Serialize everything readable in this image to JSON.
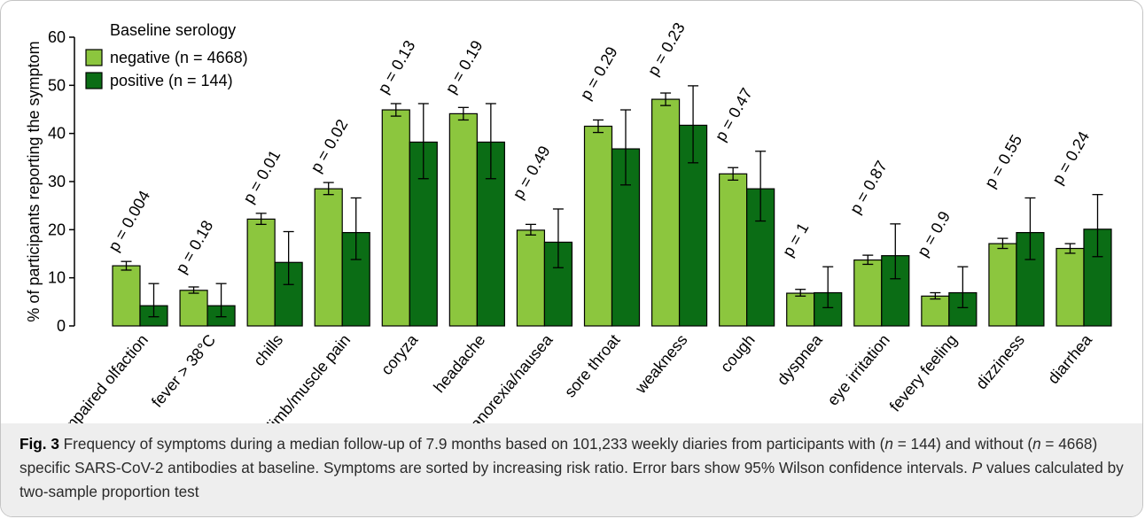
{
  "chart_data": {
    "type": "bar",
    "ylabel": "% of participants reporting the symptom",
    "ylim": [
      0,
      60
    ],
    "yticks": [
      0,
      10,
      20,
      30,
      40,
      50,
      60
    ],
    "legend": {
      "title": "Baseline serology",
      "placement": "top-left"
    },
    "categories": [
      "impaired olfaction",
      "fever > 38°C",
      "chills",
      "limb/muscle pain",
      "coryza",
      "headache",
      "anorexia/nausea",
      "sore throat",
      "weakness",
      "cough",
      "dyspnea",
      "eye irritation",
      "fevery feeling",
      "dizziness",
      "diarrhea"
    ],
    "p_values": [
      "p = 0.004",
      "p = 0.18",
      "p = 0.01",
      "p = 0.02",
      "p = 0.13",
      "p = 0.19",
      "p = 0.49",
      "p = 0.29",
      "p = 0.23",
      "p = 0.47",
      "p = 1",
      "p = 0.87",
      "p = 0.9",
      "p = 0.55",
      "p = 0.24"
    ],
    "series": [
      {
        "name": "negative (n = 4668)",
        "color": "#8cc63e",
        "values": [
          12.5,
          7.4,
          22.2,
          28.5,
          44.9,
          44.1,
          19.9,
          41.5,
          47.1,
          31.6,
          6.8,
          13.7,
          6.2,
          17.1,
          16.1
        ],
        "ci_low": [
          11.6,
          6.8,
          21.1,
          27.3,
          43.6,
          42.8,
          18.9,
          40.2,
          45.8,
          30.3,
          6.2,
          12.8,
          5.6,
          16.1,
          15.1
        ],
        "ci_high": [
          13.4,
          8.1,
          23.4,
          29.8,
          46.2,
          45.4,
          21.1,
          42.8,
          48.4,
          32.9,
          7.6,
          14.7,
          6.9,
          18.2,
          17.1
        ]
      },
      {
        "name": "positive (n = 144)",
        "color": "#0b6d15",
        "values": [
          4.2,
          4.2,
          13.2,
          19.4,
          38.2,
          38.2,
          17.4,
          36.8,
          41.7,
          28.5,
          6.9,
          14.6,
          6.9,
          19.4,
          20.1
        ],
        "ci_low": [
          1.9,
          1.9,
          8.6,
          13.8,
          30.6,
          30.6,
          12.1,
          29.3,
          33.9,
          21.8,
          3.8,
          9.8,
          3.8,
          13.8,
          14.4
        ],
        "ci_high": [
          8.8,
          8.8,
          19.6,
          26.6,
          46.2,
          46.2,
          24.3,
          44.9,
          49.9,
          36.3,
          12.3,
          21.2,
          12.3,
          26.6,
          27.3
        ]
      }
    ]
  },
  "caption": {
    "fig_label": "Fig. 3",
    "segments": [
      {
        "t": " Frequency of symptoms during a median follow-up of 7.9 months based on 101,233 weekly diaries from participants with (",
        "i": false
      },
      {
        "t": "n",
        "i": true
      },
      {
        "t": " = 144) and without (",
        "i": false
      },
      {
        "t": "n",
        "i": true
      },
      {
        "t": " = 4668) specific SARS-CoV-2 antibodies at baseline. Symptoms are sorted by increasing risk ratio. Error bars show 95% Wilson confidence intervals. ",
        "i": false
      },
      {
        "t": "P",
        "i": true
      },
      {
        "t": " values calculated by two-sample proportion test",
        "i": false
      }
    ]
  }
}
